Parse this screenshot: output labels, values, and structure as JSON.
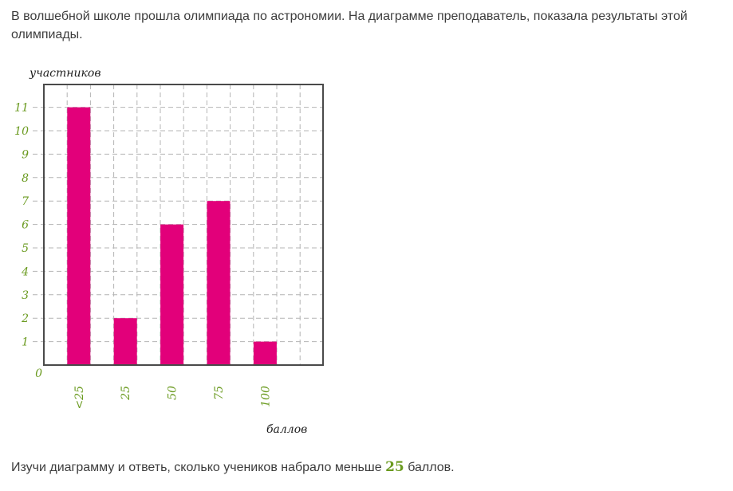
{
  "question": "В волшебной школе прошла олимпиада по астрономии. На диаграмме преподаватель, показала результаты этой олимпиады.",
  "task": {
    "before": "Изучи диаграмму и ответь, сколько учеников набрало меньше",
    "number": "25",
    "after": "баллов."
  },
  "colors": {
    "bar": "#e2007a",
    "ticks": "#6a9a1f",
    "axis": "#4a4a4a"
  },
  "chart_data": {
    "type": "bar",
    "categories": [
      "<25",
      "25",
      "50",
      "75",
      "100"
    ],
    "values": [
      11,
      2,
      6,
      7,
      1
    ],
    "title": "",
    "xlabel": "баллов",
    "ylabel": "участников",
    "ylim": [
      0,
      12
    ],
    "y_ticks": [
      0,
      1,
      2,
      3,
      4,
      5,
      6,
      7,
      8,
      9,
      10,
      11
    ],
    "grid": true
  }
}
